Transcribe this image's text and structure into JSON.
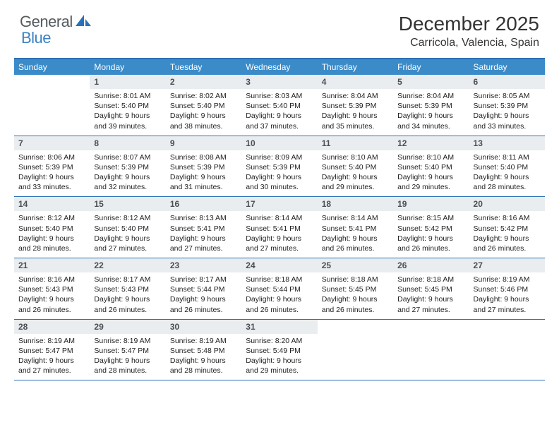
{
  "logo": {
    "text1": "General",
    "text2": "Blue",
    "color1": "#555a5e",
    "color2": "#3b82c4"
  },
  "title": "December 2025",
  "location": "Carricola, Valencia, Spain",
  "colors": {
    "header_bg": "#3b8bc9",
    "header_text": "#ffffff",
    "rule": "#2a71b8",
    "daynum_bg": "#e9edf0",
    "daynum_text": "#4a4f54",
    "body_text": "#222222"
  },
  "weekdays": [
    "Sunday",
    "Monday",
    "Tuesday",
    "Wednesday",
    "Thursday",
    "Friday",
    "Saturday"
  ],
  "weeks": [
    [
      null,
      {
        "d": "1",
        "sr": "8:01 AM",
        "ss": "5:40 PM",
        "dl": "9 hours and 39 minutes."
      },
      {
        "d": "2",
        "sr": "8:02 AM",
        "ss": "5:40 PM",
        "dl": "9 hours and 38 minutes."
      },
      {
        "d": "3",
        "sr": "8:03 AM",
        "ss": "5:40 PM",
        "dl": "9 hours and 37 minutes."
      },
      {
        "d": "4",
        "sr": "8:04 AM",
        "ss": "5:39 PM",
        "dl": "9 hours and 35 minutes."
      },
      {
        "d": "5",
        "sr": "8:04 AM",
        "ss": "5:39 PM",
        "dl": "9 hours and 34 minutes."
      },
      {
        "d": "6",
        "sr": "8:05 AM",
        "ss": "5:39 PM",
        "dl": "9 hours and 33 minutes."
      }
    ],
    [
      {
        "d": "7",
        "sr": "8:06 AM",
        "ss": "5:39 PM",
        "dl": "9 hours and 33 minutes."
      },
      {
        "d": "8",
        "sr": "8:07 AM",
        "ss": "5:39 PM",
        "dl": "9 hours and 32 minutes."
      },
      {
        "d": "9",
        "sr": "8:08 AM",
        "ss": "5:39 PM",
        "dl": "9 hours and 31 minutes."
      },
      {
        "d": "10",
        "sr": "8:09 AM",
        "ss": "5:39 PM",
        "dl": "9 hours and 30 minutes."
      },
      {
        "d": "11",
        "sr": "8:10 AM",
        "ss": "5:40 PM",
        "dl": "9 hours and 29 minutes."
      },
      {
        "d": "12",
        "sr": "8:10 AM",
        "ss": "5:40 PM",
        "dl": "9 hours and 29 minutes."
      },
      {
        "d": "13",
        "sr": "8:11 AM",
        "ss": "5:40 PM",
        "dl": "9 hours and 28 minutes."
      }
    ],
    [
      {
        "d": "14",
        "sr": "8:12 AM",
        "ss": "5:40 PM",
        "dl": "9 hours and 28 minutes."
      },
      {
        "d": "15",
        "sr": "8:12 AM",
        "ss": "5:40 PM",
        "dl": "9 hours and 27 minutes."
      },
      {
        "d": "16",
        "sr": "8:13 AM",
        "ss": "5:41 PM",
        "dl": "9 hours and 27 minutes."
      },
      {
        "d": "17",
        "sr": "8:14 AM",
        "ss": "5:41 PM",
        "dl": "9 hours and 27 minutes."
      },
      {
        "d": "18",
        "sr": "8:14 AM",
        "ss": "5:41 PM",
        "dl": "9 hours and 26 minutes."
      },
      {
        "d": "19",
        "sr": "8:15 AM",
        "ss": "5:42 PM",
        "dl": "9 hours and 26 minutes."
      },
      {
        "d": "20",
        "sr": "8:16 AM",
        "ss": "5:42 PM",
        "dl": "9 hours and 26 minutes."
      }
    ],
    [
      {
        "d": "21",
        "sr": "8:16 AM",
        "ss": "5:43 PM",
        "dl": "9 hours and 26 minutes."
      },
      {
        "d": "22",
        "sr": "8:17 AM",
        "ss": "5:43 PM",
        "dl": "9 hours and 26 minutes."
      },
      {
        "d": "23",
        "sr": "8:17 AM",
        "ss": "5:44 PM",
        "dl": "9 hours and 26 minutes."
      },
      {
        "d": "24",
        "sr": "8:18 AM",
        "ss": "5:44 PM",
        "dl": "9 hours and 26 minutes."
      },
      {
        "d": "25",
        "sr": "8:18 AM",
        "ss": "5:45 PM",
        "dl": "9 hours and 26 minutes."
      },
      {
        "d": "26",
        "sr": "8:18 AM",
        "ss": "5:45 PM",
        "dl": "9 hours and 27 minutes."
      },
      {
        "d": "27",
        "sr": "8:19 AM",
        "ss": "5:46 PM",
        "dl": "9 hours and 27 minutes."
      }
    ],
    [
      {
        "d": "28",
        "sr": "8:19 AM",
        "ss": "5:47 PM",
        "dl": "9 hours and 27 minutes."
      },
      {
        "d": "29",
        "sr": "8:19 AM",
        "ss": "5:47 PM",
        "dl": "9 hours and 28 minutes."
      },
      {
        "d": "30",
        "sr": "8:19 AM",
        "ss": "5:48 PM",
        "dl": "9 hours and 28 minutes."
      },
      {
        "d": "31",
        "sr": "8:20 AM",
        "ss": "5:49 PM",
        "dl": "9 hours and 29 minutes."
      },
      null,
      null,
      null
    ]
  ],
  "labels": {
    "sunrise": "Sunrise: ",
    "sunset": "Sunset: ",
    "daylight": "Daylight: "
  }
}
